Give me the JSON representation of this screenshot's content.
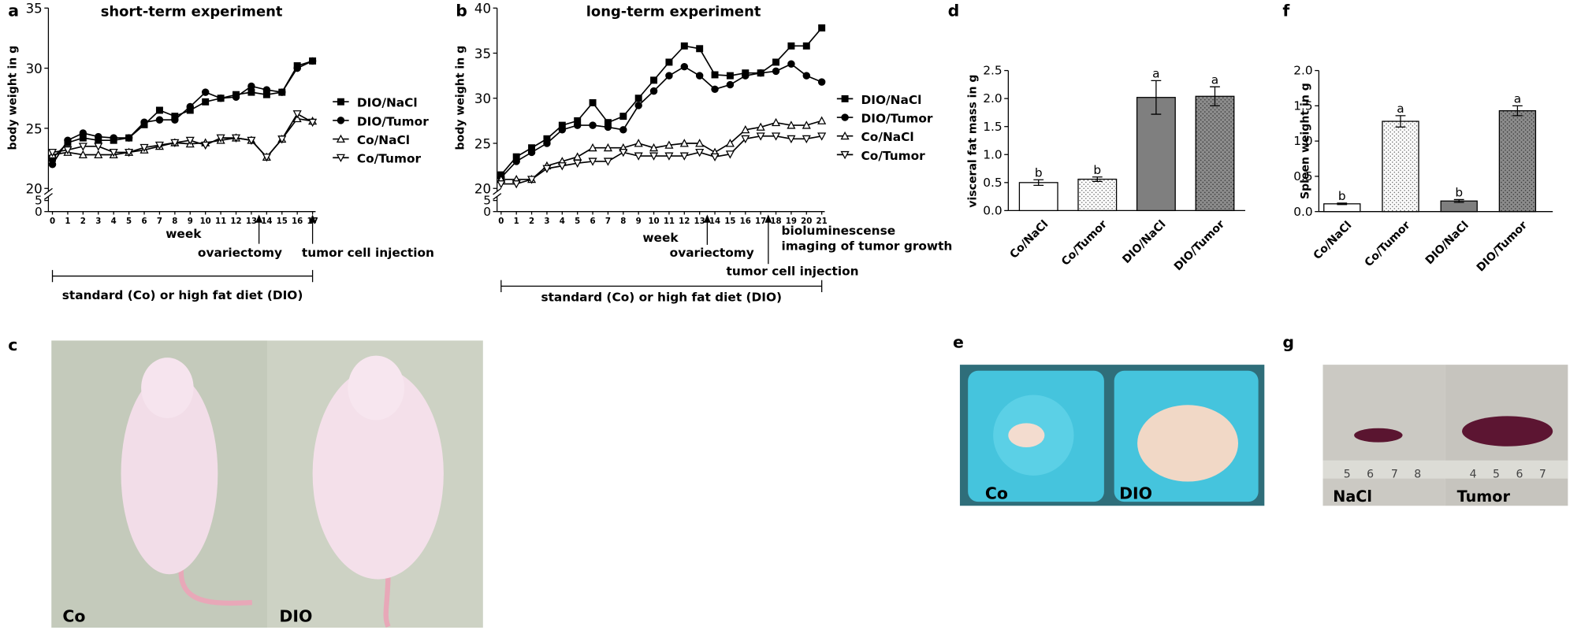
{
  "panel_labels": [
    "a",
    "b",
    "c",
    "d",
    "e",
    "f",
    "g"
  ],
  "chart_data": [
    {
      "type": "line",
      "title": "short-term experiment",
      "ylabel": "body weight in g",
      "xlabel": "week",
      "x": [
        0,
        1,
        2,
        3,
        4,
        5,
        6,
        7,
        8,
        9,
        10,
        11,
        12,
        13,
        14,
        15,
        16,
        17
      ],
      "xticks": [
        0,
        1,
        2,
        3,
        4,
        5,
        6,
        7,
        8,
        9,
        10,
        11,
        12,
        13,
        14,
        15,
        16,
        17
      ],
      "xlim": [
        0,
        17
      ],
      "ylim": [
        20,
        35
      ],
      "yticks": [
        20,
        25,
        30,
        35
      ],
      "lower_ylim": [
        0,
        5
      ],
      "lower_yticks": [
        0,
        5
      ],
      "series": [
        {
          "name": "DIO/NaCl",
          "color": "#000000",
          "marker": "square",
          "values": [
            22.5,
            23.8,
            24.2,
            24.0,
            24.0,
            24.2,
            25.3,
            26.5,
            26.0,
            26.5,
            27.2,
            27.5,
            27.8,
            28.0,
            27.8,
            28.0,
            30.2,
            30.6
          ]
        },
        {
          "name": "DIO/Tumor",
          "color": "#000000",
          "marker": "circle",
          "values": [
            22.0,
            24.0,
            24.6,
            24.3,
            24.2,
            24.2,
            25.5,
            25.7,
            25.7,
            26.8,
            28.0,
            27.5,
            27.6,
            28.5,
            28.2,
            28.0,
            30.0,
            30.6
          ]
        },
        {
          "name": "Co/NaCl",
          "color": "#000000",
          "marker": "triangle-up",
          "values": [
            22.8,
            23.0,
            22.8,
            22.8,
            22.8,
            23.0,
            23.2,
            23.5,
            23.8,
            23.7,
            23.8,
            24.0,
            24.2,
            24.0,
            22.6,
            24.1,
            25.8,
            25.6
          ]
        },
        {
          "name": "Co/Tumor",
          "color": "#000000",
          "marker": "triangle-down",
          "values": [
            23.0,
            23.2,
            23.5,
            23.5,
            23.0,
            23.0,
            23.4,
            23.6,
            23.8,
            24.0,
            23.6,
            24.2,
            24.2,
            24.0,
            22.6,
            24.1,
            26.2,
            25.5
          ]
        }
      ],
      "annotations": [
        {
          "text": "ovariectomy",
          "x": 13.5
        },
        {
          "text": "tumor cell injection",
          "x": 17
        }
      ],
      "period": {
        "text": "standard (Co) or high fat diet (DIO)",
        "x": [
          0,
          17
        ]
      }
    },
    {
      "type": "line",
      "title": "long-term experiment",
      "ylabel": "body weight in g",
      "xlabel": "week",
      "x": [
        0,
        1,
        2,
        3,
        4,
        5,
        6,
        7,
        8,
        9,
        10,
        11,
        12,
        13,
        14,
        15,
        16,
        17,
        18,
        19,
        20,
        21
      ],
      "xticks": [
        0,
        1,
        2,
        3,
        4,
        5,
        6,
        7,
        8,
        9,
        10,
        11,
        12,
        13,
        14,
        15,
        16,
        17,
        18,
        19,
        20,
        21
      ],
      "xlim": [
        0,
        21
      ],
      "ylim": [
        20,
        40
      ],
      "yticks": [
        20,
        25,
        30,
        35,
        40
      ],
      "lower_ylim": [
        0,
        5
      ],
      "lower_yticks": [
        0,
        5
      ],
      "series": [
        {
          "name": "DIO/NaCl",
          "color": "#000000",
          "marker": "square",
          "values": [
            21.5,
            23.5,
            24.5,
            25.5,
            27.0,
            27.5,
            29.5,
            27.3,
            28.0,
            30.0,
            32.0,
            34.0,
            35.8,
            35.5,
            32.6,
            32.5,
            32.8,
            32.8,
            34.0,
            35.8,
            35.8,
            37.8
          ]
        },
        {
          "name": "DIO/Tumor",
          "color": "#000000",
          "marker": "circle",
          "values": [
            21.2,
            23.0,
            24.0,
            25.0,
            26.5,
            27.0,
            27.0,
            26.8,
            26.5,
            29.2,
            30.8,
            32.5,
            33.5,
            32.5,
            31.0,
            31.5,
            32.5,
            32.8,
            33.0,
            33.8,
            32.5,
            31.8
          ]
        },
        {
          "name": "Co/NaCl",
          "color": "#000000",
          "marker": "triangle-up",
          "values": [
            21.0,
            21.0,
            21.0,
            22.5,
            23.0,
            23.5,
            24.5,
            24.5,
            24.5,
            25.0,
            24.5,
            24.8,
            25.0,
            25.0,
            24.0,
            25.0,
            26.5,
            26.8,
            27.3,
            27.0,
            27.0,
            27.5
          ]
        },
        {
          "name": "Co/Tumor",
          "color": "#000000",
          "marker": "triangle-down",
          "values": [
            20.5,
            20.5,
            21.0,
            22.2,
            22.5,
            22.8,
            23.0,
            23.0,
            24.0,
            23.6,
            23.6,
            23.6,
            23.6,
            24.0,
            23.5,
            23.8,
            25.5,
            25.8,
            25.8,
            25.5,
            25.5,
            25.8
          ]
        }
      ],
      "annotations": [
        {
          "text": "ovariectomy",
          "x": 13.5
        },
        {
          "text": "tumor cell injection",
          "x": 17.5
        },
        {
          "lines": [
            "bioluminescense",
            "imaging of tumor growth"
          ]
        }
      ],
      "period": {
        "text": "standard (Co) or high fat diet (DIO)",
        "x": [
          0,
          21
        ]
      }
    },
    {
      "type": "bar",
      "ylabel": "visceral fat mass in g",
      "categories": [
        "Co/NaCl",
        "Co/Tumor",
        "DIO/NaCl",
        "DIO/Tumor"
      ],
      "values": [
        0.5,
        0.56,
        2.02,
        2.04
      ],
      "errors": [
        0.05,
        0.04,
        0.3,
        0.17
      ],
      "group_letters": [
        "b",
        "b",
        "a",
        "a"
      ],
      "colors": [
        "#ffffff",
        "#ffffff",
        "#7f7f7f",
        "#8c8c8c"
      ],
      "patterns": [
        "none",
        "dots",
        "none",
        "dots"
      ],
      "ylim": [
        0,
        2.5
      ],
      "yticks": [
        {
          "value": 0,
          "label": "0.0"
        },
        0.5,
        {
          "value": 1,
          "label": "1.0"
        },
        1.5,
        {
          "value": 2,
          "label": "2.0"
        },
        2.5
      ]
    },
    {
      "type": "bar",
      "ylabel": "Spleen weight in g",
      "categories": [
        "Co/NaCl",
        "Co/Tumor",
        "DIO/NaCl",
        "DIO/Tumor"
      ],
      "values": [
        0.11,
        1.28,
        0.15,
        1.43
      ],
      "errors": [
        0.01,
        0.08,
        0.02,
        0.07
      ],
      "group_letters": [
        "b",
        "a",
        "b",
        "a"
      ],
      "colors": [
        "#ffffff",
        "#ffffff",
        "#7f7f7f",
        "#8c8c8c"
      ],
      "patterns": [
        "none",
        "dots",
        "none",
        "dots"
      ],
      "ylim": [
        0,
        2
      ],
      "yticks": [
        {
          "value": 0,
          "label": "0.0"
        },
        0.5,
        {
          "value": 1,
          "label": "1.0"
        },
        1.5,
        {
          "value": 2,
          "label": "2.0"
        }
      ]
    }
  ],
  "photos": {
    "c": {
      "labels": [
        "Co",
        "DIO"
      ]
    },
    "e": {
      "labels": [
        "Co",
        "DIO"
      ]
    },
    "g": {
      "labels": [
        "NaCl",
        "Tumor"
      ],
      "ruler_labels": [
        [
          "5",
          "6",
          "7",
          "8"
        ],
        [
          "4",
          "5",
          "6",
          "7"
        ]
      ]
    }
  }
}
